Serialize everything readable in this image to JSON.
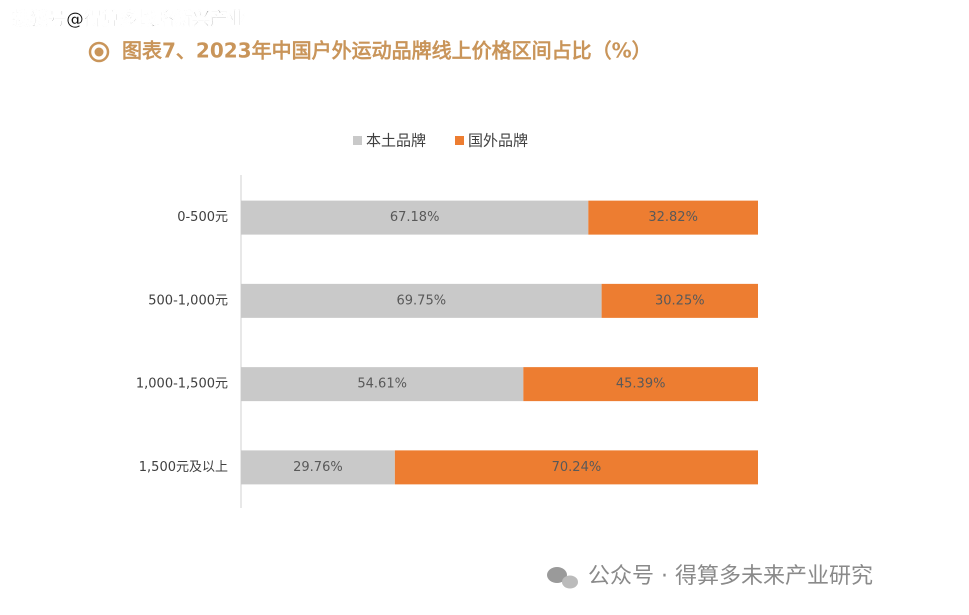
{
  "watermark_top": "搜狐号@得算多战略新兴产业",
  "watermark_bottom": "公众号 · 得算多未来产业研究",
  "chart_data": {
    "type": "stacked-barh",
    "title": "图表7、2023年中国户外运动品牌线上价格区间占比（%）",
    "categories": [
      "0-500元",
      "500-1,000元",
      "1,000-1,500元",
      "1,500元及以上"
    ],
    "series": [
      {
        "name": "本土品牌",
        "color": "#c9c9c9",
        "values": [
          67.18,
          69.75,
          54.61,
          29.76
        ],
        "value_labels": [
          "67.18%",
          "69.75%",
          "54.61%",
          "29.76%"
        ]
      },
      {
        "name": "国外品牌",
        "color": "#ed7d31",
        "values": [
          32.82,
          30.25,
          45.39,
          70.24
        ],
        "value_labels": [
          "32.82%",
          "30.25%",
          "45.39%",
          "70.24%"
        ]
      }
    ],
    "xlim": [
      0,
      100
    ],
    "legend": "top"
  }
}
